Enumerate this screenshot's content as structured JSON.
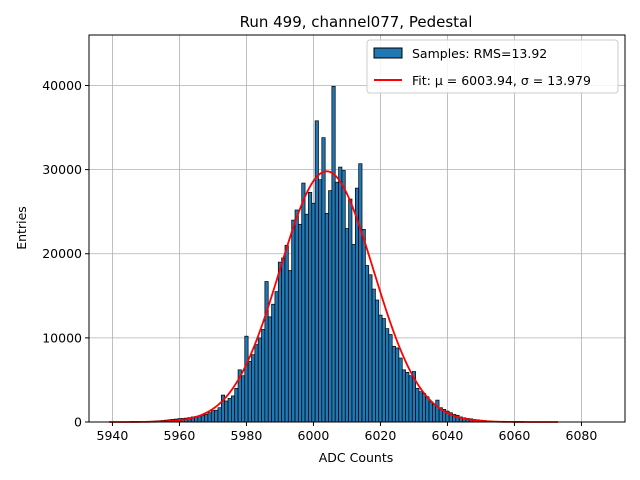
{
  "chart_data": {
    "type": "bar",
    "title": "Run 499, channel077, Pedestal",
    "xlabel": "ADC Counts",
    "ylabel": "Entries",
    "xlim": [
      5933,
      6093
    ],
    "ylim": [
      0,
      46000
    ],
    "xticks": [
      5940,
      5960,
      5980,
      6000,
      6020,
      6040,
      6060,
      6080
    ],
    "yticks": [
      0,
      10000,
      20000,
      30000,
      40000
    ],
    "grid": true,
    "legend_position": "top-right",
    "colors": {
      "bar": "#1f77b4",
      "bar_edge": "#000000",
      "fit": "#ff0000",
      "grid": "#b0b0b0"
    },
    "bin_width": 1,
    "x": [
      5949,
      5950,
      5951,
      5952,
      5953,
      5954,
      5955,
      5956,
      5957,
      5958,
      5959,
      5960,
      5961,
      5962,
      5963,
      5964,
      5965,
      5966,
      5967,
      5968,
      5969,
      5970,
      5971,
      5972,
      5973,
      5974,
      5975,
      5976,
      5977,
      5978,
      5979,
      5980,
      5981,
      5982,
      5983,
      5984,
      5985,
      5986,
      5987,
      5988,
      5989,
      5990,
      5991,
      5992,
      5993,
      5994,
      5995,
      5996,
      5997,
      5998,
      5999,
      6000,
      6001,
      6002,
      6003,
      6004,
      6005,
      6006,
      6007,
      6008,
      6009,
      6010,
      6011,
      6012,
      6013,
      6014,
      6015,
      6016,
      6017,
      6018,
      6019,
      6020,
      6021,
      6022,
      6023,
      6024,
      6025,
      6026,
      6027,
      6028,
      6029,
      6030,
      6031,
      6032,
      6033,
      6034,
      6035,
      6036,
      6037,
      6038,
      6039,
      6040,
      6041,
      6042,
      6043,
      6044,
      6045,
      6046,
      6047,
      6048,
      6049,
      6050,
      6051,
      6052,
      6053,
      6054,
      6055,
      6056,
      6057,
      6058
    ],
    "values": [
      50,
      60,
      80,
      100,
      120,
      150,
      180,
      220,
      260,
      310,
      350,
      400,
      420,
      460,
      520,
      600,
      650,
      700,
      800,
      900,
      1100,
      1350,
      1400,
      1700,
      3200,
      2500,
      2800,
      3100,
      4000,
      6200,
      5500,
      10200,
      7200,
      8000,
      9200,
      10000,
      11000,
      16700,
      12500,
      14000,
      15500,
      19000,
      19500,
      21000,
      18000,
      24000,
      25200,
      23500,
      28400,
      24700,
      27300,
      26000,
      35800,
      28800,
      33800,
      24800,
      27500,
      39900,
      28500,
      30300,
      29900,
      23000,
      26500,
      21100,
      27800,
      30700,
      22900,
      18600,
      17500,
      15800,
      14500,
      12700,
      12300,
      11100,
      10400,
      9000,
      8800,
      7600,
      6200,
      5900,
      5500,
      6000,
      4000,
      3600,
      3400,
      3000,
      2400,
      2100,
      2600,
      1700,
      1500,
      1300,
      1100,
      900,
      800,
      600,
      500,
      420,
      380,
      300,
      260,
      220,
      180,
      140,
      110,
      80,
      60,
      45,
      30,
      20
    ],
    "series": [
      {
        "name": "Samples: RMS=13.92",
        "kind": "histogram"
      },
      {
        "name": "Fit: μ = 6003.94, σ = 13.979",
        "kind": "gaussian",
        "mu": 6003.94,
        "sigma": 13.979,
        "amplitude": 29800,
        "x_range": [
          5939,
          6073
        ]
      }
    ]
  }
}
